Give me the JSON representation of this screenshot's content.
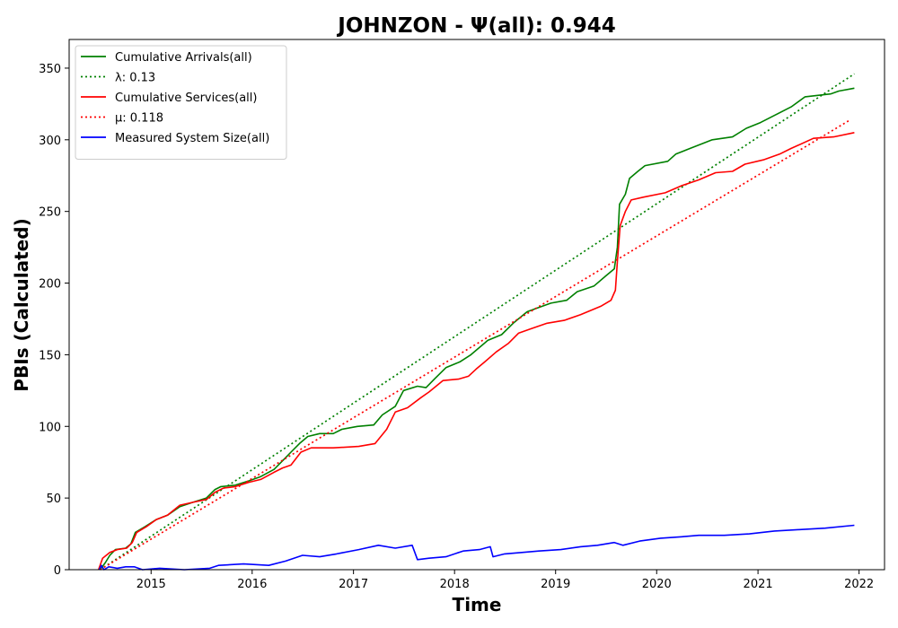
{
  "chart_data": {
    "type": "line",
    "title": "JOHNZON -  Ψ(all): 0.944",
    "xlabel": "Time",
    "ylabel": "PBIs (Calculated)",
    "xlim": [
      "2014-03-11",
      "2022-04-03"
    ],
    "ylim": [
      0,
      370
    ],
    "xticks": [
      {
        "date": "2015-01-01",
        "label": "2015"
      },
      {
        "date": "2016-01-01",
        "label": "2016"
      },
      {
        "date": "2017-01-01",
        "label": "2017"
      },
      {
        "date": "2018-01-01",
        "label": "2018"
      },
      {
        "date": "2019-01-01",
        "label": "2019"
      },
      {
        "date": "2020-01-01",
        "label": "2020"
      },
      {
        "date": "2021-01-01",
        "label": "2021"
      },
      {
        "date": "2022-01-01",
        "label": "2022"
      }
    ],
    "yticks": [
      0,
      50,
      100,
      150,
      200,
      250,
      300,
      350
    ],
    "grid": false,
    "legend_position": "upper-left",
    "series": [
      {
        "name": "Cumulative Arrivals(all)",
        "style": "solid",
        "color": "#008000",
        "points": [
          [
            "2014-07-01",
            0
          ],
          [
            "2014-07-20",
            5
          ],
          [
            "2014-08-05",
            10
          ],
          [
            "2014-08-25",
            14
          ],
          [
            "2014-10-01",
            15
          ],
          [
            "2014-10-20",
            18
          ],
          [
            "2014-11-05",
            26
          ],
          [
            "2014-12-10",
            30
          ],
          [
            "2015-01-20",
            35
          ],
          [
            "2015-03-01",
            38
          ],
          [
            "2015-04-15",
            44
          ],
          [
            "2015-06-01",
            47
          ],
          [
            "2015-07-20",
            50
          ],
          [
            "2015-08-20",
            56
          ],
          [
            "2015-09-10",
            58
          ],
          [
            "2015-11-01",
            59
          ],
          [
            "2015-12-20",
            62
          ],
          [
            "2016-02-01",
            65
          ],
          [
            "2016-03-20",
            70
          ],
          [
            "2016-04-20",
            76
          ],
          [
            "2016-05-20",
            82
          ],
          [
            "2016-06-20",
            88
          ],
          [
            "2016-07-20",
            93
          ],
          [
            "2016-09-01",
            95
          ],
          [
            "2016-10-20",
            95
          ],
          [
            "2016-11-20",
            98
          ],
          [
            "2017-01-15",
            100
          ],
          [
            "2017-03-15",
            101
          ],
          [
            "2017-04-15",
            108
          ],
          [
            "2017-06-01",
            114
          ],
          [
            "2017-07-01",
            125
          ],
          [
            "2017-08-20",
            128
          ],
          [
            "2017-09-20",
            127
          ],
          [
            "2017-10-20",
            133
          ],
          [
            "2017-12-01",
            141
          ],
          [
            "2018-01-20",
            145
          ],
          [
            "2018-03-01",
            150
          ],
          [
            "2018-05-01",
            160
          ],
          [
            "2018-06-20",
            164
          ],
          [
            "2018-08-01",
            172
          ],
          [
            "2018-09-20",
            180
          ],
          [
            "2018-11-01",
            183
          ],
          [
            "2018-12-15",
            186
          ],
          [
            "2019-02-10",
            188
          ],
          [
            "2019-03-20",
            194
          ],
          [
            "2019-05-20",
            198
          ],
          [
            "2019-07-01",
            205
          ],
          [
            "2019-08-01",
            210
          ],
          [
            "2019-08-12",
            225
          ],
          [
            "2019-08-20",
            255
          ],
          [
            "2019-09-10",
            262
          ],
          [
            "2019-09-25",
            273
          ],
          [
            "2019-10-25",
            278
          ],
          [
            "2019-11-20",
            282
          ],
          [
            "2020-02-10",
            285
          ],
          [
            "2020-03-10",
            290
          ],
          [
            "2020-05-01",
            294
          ],
          [
            "2020-07-20",
            300
          ],
          [
            "2020-10-01",
            302
          ],
          [
            "2020-11-20",
            308
          ],
          [
            "2021-01-10",
            312
          ],
          [
            "2021-03-01",
            317
          ],
          [
            "2021-05-01",
            323
          ],
          [
            "2021-06-20",
            330
          ],
          [
            "2021-09-20",
            332
          ],
          [
            "2021-10-20",
            334
          ],
          [
            "2021-12-15",
            336
          ]
        ]
      },
      {
        "name": "λ: 0.13",
        "style": "dotted",
        "color": "#008000",
        "points": [
          [
            "2014-07-01",
            0
          ],
          [
            "2021-12-15",
            346
          ]
        ]
      },
      {
        "name": "Cumulative Services(all)",
        "style": "solid",
        "color": "#ff0000",
        "points": [
          [
            "2014-06-25",
            0
          ],
          [
            "2014-07-10",
            8
          ],
          [
            "2014-08-05",
            12
          ],
          [
            "2014-09-01",
            14
          ],
          [
            "2014-10-05",
            15
          ],
          [
            "2014-10-25",
            19
          ],
          [
            "2014-11-10",
            26
          ],
          [
            "2014-12-15",
            30
          ],
          [
            "2015-01-20",
            35
          ],
          [
            "2015-03-01",
            38
          ],
          [
            "2015-04-15",
            45
          ],
          [
            "2015-06-01",
            47
          ],
          [
            "2015-07-20",
            49
          ],
          [
            "2015-08-20",
            54
          ],
          [
            "2015-09-20",
            57
          ],
          [
            "2015-11-01",
            58
          ],
          [
            "2015-12-20",
            61
          ],
          [
            "2016-02-01",
            63
          ],
          [
            "2016-03-20",
            68
          ],
          [
            "2016-04-20",
            71
          ],
          [
            "2016-05-20",
            73
          ],
          [
            "2016-06-25",
            82
          ],
          [
            "2016-08-01",
            85
          ],
          [
            "2016-10-20",
            85
          ],
          [
            "2017-01-20",
            86
          ],
          [
            "2017-03-20",
            88
          ],
          [
            "2017-05-01",
            98
          ],
          [
            "2017-06-01",
            110
          ],
          [
            "2017-07-15",
            113
          ],
          [
            "2017-09-01",
            120
          ],
          [
            "2017-10-01",
            124
          ],
          [
            "2017-11-20",
            132
          ],
          [
            "2018-01-15",
            133
          ],
          [
            "2018-02-20",
            135
          ],
          [
            "2018-03-20",
            140
          ],
          [
            "2018-04-20",
            145
          ],
          [
            "2018-06-01",
            152
          ],
          [
            "2018-07-15",
            158
          ],
          [
            "2018-08-20",
            165
          ],
          [
            "2018-10-01",
            168
          ],
          [
            "2018-12-01",
            172
          ],
          [
            "2019-02-01",
            174
          ],
          [
            "2019-04-01",
            178
          ],
          [
            "2019-06-15",
            184
          ],
          [
            "2019-07-20",
            188
          ],
          [
            "2019-08-05",
            195
          ],
          [
            "2019-08-12",
            215
          ],
          [
            "2019-08-22",
            240
          ],
          [
            "2019-09-10",
            250
          ],
          [
            "2019-10-01",
            258
          ],
          [
            "2019-11-15",
            260
          ],
          [
            "2020-02-01",
            263
          ],
          [
            "2020-04-01",
            268
          ],
          [
            "2020-06-01",
            272
          ],
          [
            "2020-08-01",
            277
          ],
          [
            "2020-10-01",
            278
          ],
          [
            "2020-11-15",
            283
          ],
          [
            "2021-01-20",
            286
          ],
          [
            "2021-03-20",
            290
          ],
          [
            "2021-05-01",
            294
          ],
          [
            "2021-07-20",
            301
          ],
          [
            "2021-10-01",
            302
          ],
          [
            "2021-12-15",
            305
          ]
        ]
      },
      {
        "name": "μ: 0.118",
        "style": "dotted",
        "color": "#ff0000",
        "points": [
          [
            "2014-07-01",
            0
          ],
          [
            "2021-12-01",
            314
          ]
        ]
      },
      {
        "name": "Measured System Size(all)",
        "style": "solid",
        "color": "#0000ff",
        "points": [
          [
            "2014-06-28",
            0
          ],
          [
            "2014-07-05",
            3
          ],
          [
            "2014-07-15",
            0
          ],
          [
            "2014-08-01",
            2
          ],
          [
            "2014-09-01",
            1
          ],
          [
            "2014-10-01",
            2
          ],
          [
            "2014-11-01",
            2
          ],
          [
            "2014-12-01",
            0
          ],
          [
            "2015-02-01",
            1
          ],
          [
            "2015-05-01",
            0
          ],
          [
            "2015-08-01",
            1
          ],
          [
            "2015-09-01",
            3
          ],
          [
            "2015-12-01",
            4
          ],
          [
            "2016-03-01",
            3
          ],
          [
            "2016-05-01",
            6
          ],
          [
            "2016-07-01",
            10
          ],
          [
            "2016-09-01",
            9
          ],
          [
            "2016-11-01",
            11
          ],
          [
            "2017-01-20",
            14
          ],
          [
            "2017-04-01",
            17
          ],
          [
            "2017-06-01",
            15
          ],
          [
            "2017-08-01",
            17
          ],
          [
            "2017-08-20",
            7
          ],
          [
            "2017-10-01",
            8
          ],
          [
            "2017-12-01",
            9
          ],
          [
            "2018-02-01",
            13
          ],
          [
            "2018-04-01",
            14
          ],
          [
            "2018-05-10",
            16
          ],
          [
            "2018-05-20",
            9
          ],
          [
            "2018-07-01",
            11
          ],
          [
            "2018-09-01",
            12
          ],
          [
            "2018-11-01",
            13
          ],
          [
            "2019-01-20",
            14
          ],
          [
            "2019-04-01",
            16
          ],
          [
            "2019-06-01",
            17
          ],
          [
            "2019-08-01",
            19
          ],
          [
            "2019-09-01",
            17
          ],
          [
            "2019-11-01",
            20
          ],
          [
            "2020-01-15",
            22
          ],
          [
            "2020-04-01",
            23
          ],
          [
            "2020-06-01",
            24
          ],
          [
            "2020-09-01",
            24
          ],
          [
            "2020-12-01",
            25
          ],
          [
            "2021-03-01",
            27
          ],
          [
            "2021-06-01",
            28
          ],
          [
            "2021-09-01",
            29
          ],
          [
            "2021-12-15",
            31
          ]
        ]
      }
    ]
  }
}
